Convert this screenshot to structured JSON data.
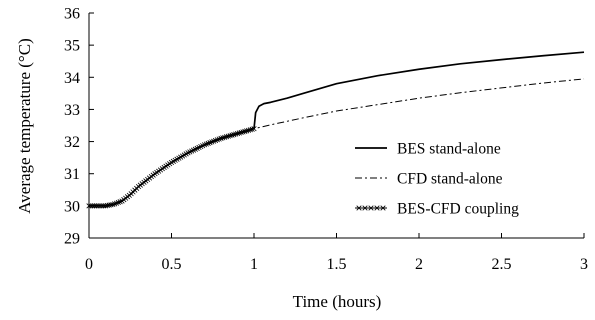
{
  "chart_data": {
    "type": "line",
    "xlabel": "Time (hours)",
    "ylabel": "Average temperature (°C)",
    "xlim": [
      0,
      3
    ],
    "ylim": [
      29,
      36
    ],
    "xticks": [
      "0",
      "0.5",
      "1",
      "1.5",
      "2",
      "2.5",
      "3"
    ],
    "yticks": [
      "29",
      "30",
      "31",
      "32",
      "33",
      "34",
      "35",
      "36"
    ],
    "grid": false,
    "legend_position": "right",
    "series": [
      {
        "name": "BES stand-alone",
        "style": "solid",
        "color": "#000000",
        "x": [
          0,
          0.1,
          0.15,
          0.2,
          0.25,
          0.3,
          0.4,
          0.5,
          0.6,
          0.7,
          0.8,
          0.9,
          1.0,
          1.01,
          1.03,
          1.06,
          1.1,
          1.2,
          1.3,
          1.5,
          1.75,
          2.0,
          2.25,
          2.5,
          2.75,
          3.0
        ],
        "y": [
          30.0,
          30.0,
          30.05,
          30.15,
          30.35,
          30.6,
          31.0,
          31.35,
          31.65,
          31.9,
          32.1,
          32.25,
          32.4,
          32.9,
          33.1,
          33.18,
          33.22,
          33.35,
          33.5,
          33.8,
          34.05,
          34.25,
          34.42,
          34.55,
          34.67,
          34.78
        ]
      },
      {
        "name": "CFD stand-alone",
        "style": "dashdot",
        "color": "#000000",
        "x": [
          0,
          0.1,
          0.15,
          0.2,
          0.25,
          0.3,
          0.4,
          0.5,
          0.6,
          0.7,
          0.8,
          0.9,
          1.0,
          1.1,
          1.2,
          1.3,
          1.5,
          1.75,
          2.0,
          2.25,
          2.5,
          2.75,
          3.0
        ],
        "y": [
          30.0,
          30.0,
          30.05,
          30.15,
          30.35,
          30.6,
          31.0,
          31.35,
          31.65,
          31.9,
          32.1,
          32.25,
          32.4,
          32.52,
          32.63,
          32.74,
          32.95,
          33.15,
          33.35,
          33.52,
          33.67,
          33.82,
          33.95
        ]
      },
      {
        "name": "BES-CFD coupling",
        "style": "solid-cross",
        "color": "#000000",
        "x": [
          0,
          0.1,
          0.15,
          0.2,
          0.25,
          0.3,
          0.4,
          0.5,
          0.6,
          0.7,
          0.8,
          0.9,
          1.0
        ],
        "y": [
          30.0,
          30.0,
          30.05,
          30.15,
          30.35,
          30.6,
          31.0,
          31.35,
          31.65,
          31.9,
          32.1,
          32.25,
          32.4
        ]
      }
    ]
  }
}
